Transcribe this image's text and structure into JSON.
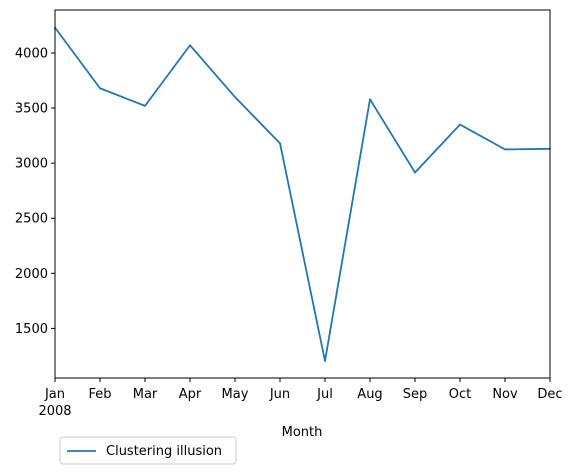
{
  "chart_data": {
    "type": "line",
    "title": "",
    "xlabel": "Month",
    "ylabel": "",
    "x": [
      "2008-01",
      "2008-02",
      "2008-03",
      "2008-04",
      "2008-05",
      "2008-06",
      "2008-07",
      "2008-08",
      "2008-09",
      "2008-10",
      "2008-11",
      "2008-12"
    ],
    "x_tick_labels": [
      "Jan",
      "Feb",
      "Mar",
      "Apr",
      "May",
      "Jun",
      "Jul",
      "Aug",
      "Sep",
      "Oct",
      "Nov",
      "Dec"
    ],
    "x_year_label": "2008",
    "series": [
      {
        "name": "Clustering illusion",
        "color": "#1f77b4",
        "values": [
          4230,
          3680,
          3520,
          4070,
          3600,
          3180,
          1205,
          3580,
          2915,
          3350,
          3125,
          3130
        ]
      }
    ],
    "ylim": [
      1050,
      4390
    ],
    "y_ticks": [
      1500,
      2000,
      2500,
      3000,
      3500,
      4000
    ],
    "grid": false,
    "legend_position": "lower-left, outside below axes"
  }
}
